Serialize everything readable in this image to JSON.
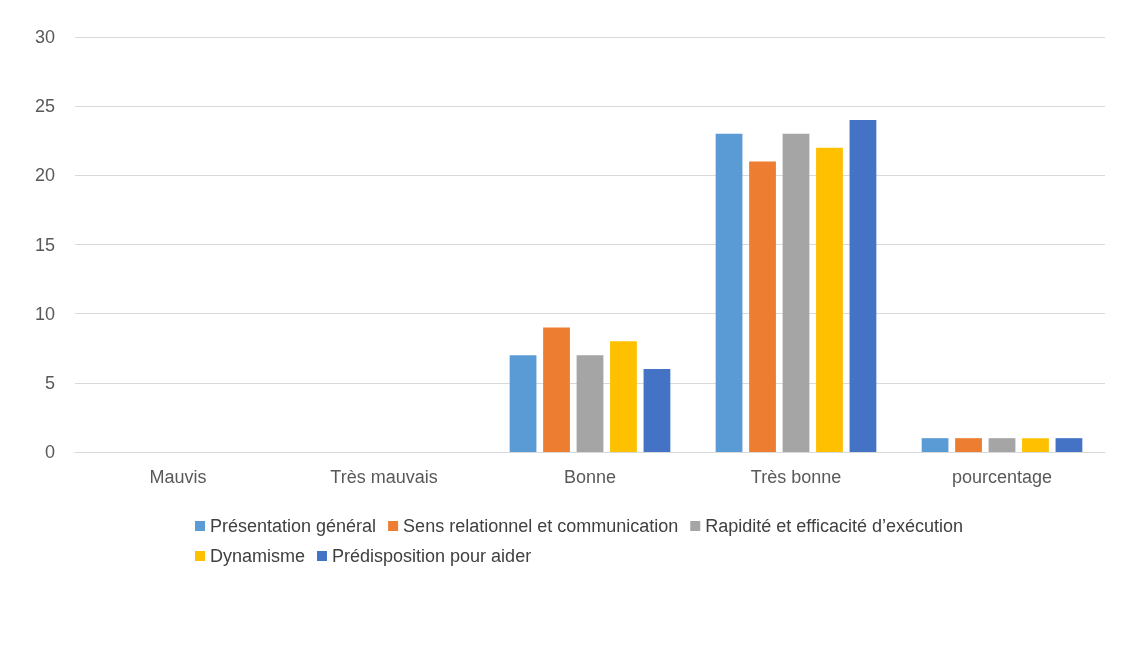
{
  "chart_data": {
    "type": "bar",
    "categories": [
      "Mauvis",
      "Très mauvais",
      "Bonne",
      "Très bonne",
      "pourcentage"
    ],
    "series": [
      {
        "name": "Présentation général",
        "color": "#5b9bd5",
        "values": [
          null,
          null,
          7,
          23,
          1
        ]
      },
      {
        "name": "Sens relationnel et communication",
        "color": "#ed7d31",
        "values": [
          null,
          null,
          9,
          21,
          1
        ]
      },
      {
        "name": "Rapidité et efficacité d’exécution",
        "color": "#a5a5a5",
        "values": [
          null,
          null,
          7,
          23,
          1
        ]
      },
      {
        "name": "Dynamisme",
        "color": "#ffc000",
        "values": [
          null,
          null,
          8,
          22,
          1
        ]
      },
      {
        "name": "Prédisposition pour aider",
        "color": "#4472c4",
        "values": [
          null,
          null,
          6,
          24,
          1
        ]
      }
    ],
    "ylim": [
      0,
      30
    ],
    "yticks": [
      0,
      5,
      10,
      15,
      20,
      25,
      30
    ],
    "grid": "y",
    "legend": "bottom"
  }
}
